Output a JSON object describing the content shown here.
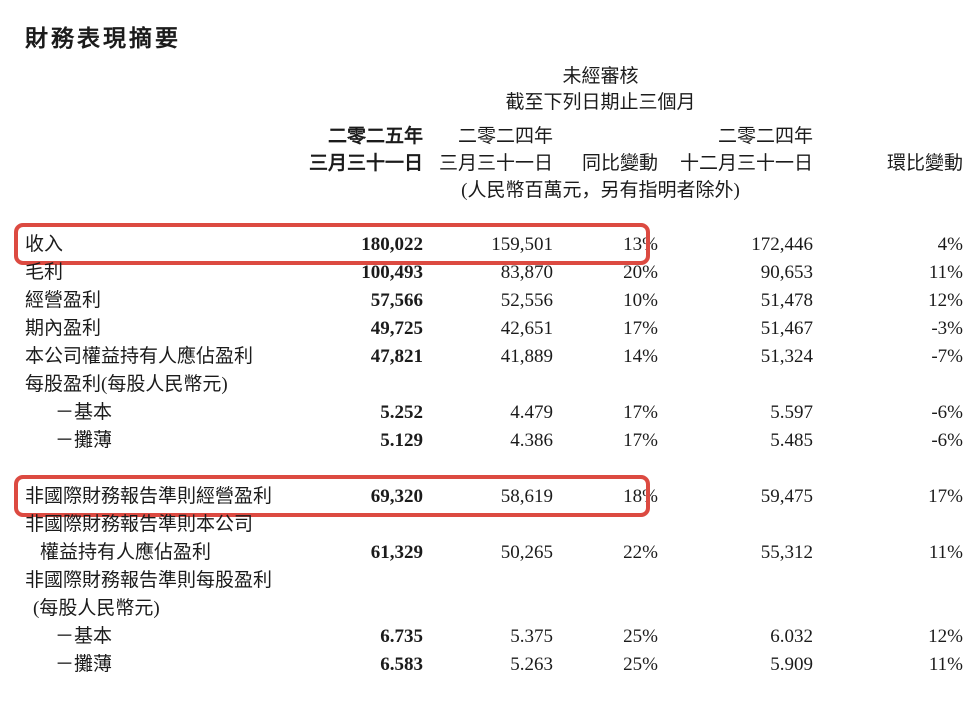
{
  "page_title": "財務表現摘要",
  "accent_color": "#dc4a41",
  "table": {
    "header": {
      "unaudited_line1": "未經審核",
      "unaudited_line2": "截至下列日期止三個月",
      "col1_line1": "二零二五年",
      "col1_line2": "三月三十一日",
      "col2_line1": "二零二四年",
      "col2_line2": "三月三十一日",
      "col3_line2": "同比變動",
      "col4_line1": "二零二四年",
      "col4_line2": "十二月三十一日",
      "col5_line2": "環比變動",
      "unit_note": "(人民幣百萬元，另有指明者除外)"
    },
    "rows": [
      {
        "label": "收入",
        "c1": "180,022",
        "c2": "159,501",
        "c3": "13%",
        "c4": "172,446",
        "c5": "4%",
        "highlight": true
      },
      {
        "label": "毛利",
        "c1": "100,493",
        "c2": "83,870",
        "c3": "20%",
        "c4": "90,653",
        "c5": "11%"
      },
      {
        "label": "經營盈利",
        "c1": "57,566",
        "c2": "52,556",
        "c3": "10%",
        "c4": "51,478",
        "c5": "12%"
      },
      {
        "label": "期內盈利",
        "c1": "49,725",
        "c2": "42,651",
        "c3": "17%",
        "c4": "51,467",
        "c5": "-3%"
      },
      {
        "label": "本公司權益持有人應佔盈利",
        "c1": "47,821",
        "c2": "41,889",
        "c3": "14%",
        "c4": "51,324",
        "c5": "-7%"
      },
      {
        "label": "每股盈利(每股人民幣元)"
      },
      {
        "label": "－基本",
        "indent": 30,
        "c1": "5.252",
        "c2": "4.479",
        "c3": "17%",
        "c4": "5.597",
        "c5": "-6%"
      },
      {
        "label": "－攤薄",
        "indent": 30,
        "c1": "5.129",
        "c2": "4.386",
        "c3": "17%",
        "c4": "5.485",
        "c5": "-6%"
      },
      {
        "spacer": true
      },
      {
        "label": "非國際財務報告準則經營盈利",
        "c1": "69,320",
        "c2": "58,619",
        "c3": "18%",
        "c4": "59,475",
        "c5": "17%",
        "highlight": true
      },
      {
        "label": "非國際財務報告準則本公司"
      },
      {
        "label": "權益持有人應佔盈利",
        "indent": 15,
        "c1": "61,329",
        "c2": "50,265",
        "c3": "22%",
        "c4": "55,312",
        "c5": "11%"
      },
      {
        "label": "非國際財務報告準則每股盈利"
      },
      {
        "label": "(每股人民幣元)",
        "indent": 8
      },
      {
        "label": "－基本",
        "indent": 30,
        "c1": "6.735",
        "c2": "5.375",
        "c3": "25%",
        "c4": "6.032",
        "c5": "12%"
      },
      {
        "label": "－攤薄",
        "indent": 30,
        "c1": "6.583",
        "c2": "5.263",
        "c3": "25%",
        "c4": "5.909",
        "c5": "11%"
      }
    ]
  }
}
